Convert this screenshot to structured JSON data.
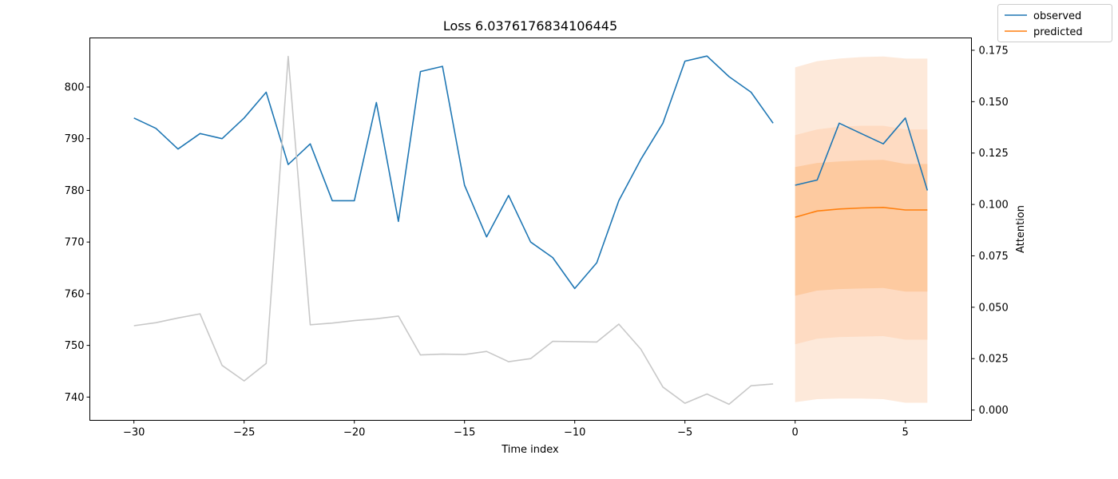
{
  "chart_data": {
    "type": "line",
    "title": "Loss 6.0376176834106445",
    "xlabel": "Time index",
    "ylabel_left": "",
    "ylabel_right": "Attention",
    "xlim": [
      -32,
      8
    ],
    "ylim_left": [
      735.5,
      809.5
    ],
    "ylim_right": [
      -0.005,
      0.181
    ],
    "x_ticks": [
      -30,
      -25,
      -20,
      -15,
      -10,
      -5,
      0,
      5
    ],
    "x_tick_labels": [
      "−30",
      "−25",
      "−20",
      "−15",
      "−10",
      "−5",
      "0",
      "5"
    ],
    "y_left_ticks": [
      740,
      750,
      760,
      770,
      780,
      790,
      800
    ],
    "y_left_tick_labels": [
      "740",
      "750",
      "760",
      "770",
      "780",
      "790",
      "800"
    ],
    "y_right_ticks": [
      0.0,
      0.025,
      0.05,
      0.075,
      0.1,
      0.125,
      0.15,
      0.175
    ],
    "y_right_tick_labels": [
      "0.000",
      "0.025",
      "0.050",
      "0.075",
      "0.100",
      "0.125",
      "0.150",
      "0.175"
    ],
    "legend": {
      "position": "top-right",
      "entries": [
        "observed",
        "predicted"
      ]
    },
    "grid": false,
    "series": [
      {
        "name": "observed",
        "axis": "left",
        "color": "#1f77b4",
        "x": [
          -30,
          -29,
          -28,
          -27,
          -26,
          -25,
          -24,
          -23,
          -22,
          -21,
          -20,
          -19,
          -18,
          -17,
          -16,
          -15,
          -14,
          -13,
          -12,
          -11,
          -10,
          -9,
          -8,
          -7,
          -6,
          -5,
          -4,
          -3,
          -2,
          -1
        ],
        "y": [
          794,
          792,
          788,
          791,
          790,
          794,
          799,
          785,
          789,
          778,
          778,
          797,
          774,
          803,
          804,
          781,
          771,
          779,
          770,
          767,
          761,
          766,
          778,
          786,
          793,
          805,
          806,
          802,
          799,
          793
        ]
      },
      {
        "name": "observed",
        "axis": "left",
        "color": "#1f77b4",
        "x": [
          0,
          1,
          2,
          3,
          4,
          5,
          6
        ],
        "y": [
          781,
          782,
          793,
          791,
          789,
          794,
          780
        ]
      },
      {
        "name": "predicted",
        "axis": "left",
        "color": "#ff7f0e",
        "x": [
          0,
          1,
          2,
          3,
          4,
          5,
          6
        ],
        "y": [
          774.8,
          776,
          776.4,
          776.6,
          776.7,
          776.2,
          776.2
        ]
      },
      {
        "name": "attention",
        "axis": "right",
        "color": "#c8c8c8",
        "x": [
          -30,
          -29,
          -28,
          -27,
          -26,
          -25,
          -24,
          -23,
          -22,
          -21,
          -20,
          -19,
          -18,
          -17,
          -16,
          -15,
          -14,
          -13,
          -12,
          -11,
          -10,
          -9,
          -8,
          -7,
          -6,
          -5,
          -4,
          -3,
          -2,
          -1
        ],
        "y": [
          0.041,
          0.0425,
          0.0448,
          0.0468,
          0.0217,
          0.0142,
          0.0227,
          0.172,
          0.0415,
          0.0423,
          0.0435,
          0.0444,
          0.0457,
          0.0268,
          0.0272,
          0.027,
          0.0285,
          0.0235,
          0.025,
          0.0334,
          0.0333,
          0.0331,
          0.0418,
          0.0296,
          0.0112,
          0.0033,
          0.0078,
          0.0028,
          0.0118,
          0.0127
        ]
      }
    ],
    "bands": [
      {
        "color": "#fde9da",
        "x": [
          0,
          1,
          2,
          3,
          4,
          5,
          6
        ],
        "lower": [
          739,
          739.6,
          739.7,
          739.7,
          739.6,
          738.9,
          738.9
        ],
        "upper": [
          803.8,
          805,
          805.5,
          805.8,
          805.9,
          805.5,
          805.5
        ]
      },
      {
        "color": "#fedbc2",
        "x": [
          0,
          1,
          2,
          3,
          4,
          5,
          6
        ],
        "lower": [
          750.2,
          751.3,
          751.6,
          751.7,
          751.8,
          751.1,
          751.1
        ],
        "upper": [
          790.7,
          791.8,
          792.3,
          792.5,
          792.5,
          791.8,
          791.8
        ]
      },
      {
        "color": "#fdcaa0",
        "x": [
          0,
          1,
          2,
          3,
          4,
          5,
          6
        ],
        "lower": [
          759.6,
          760.6,
          760.9,
          761.0,
          761.1,
          760.4,
          760.4
        ],
        "upper": [
          784.5,
          785.3,
          785.6,
          785.8,
          785.9,
          785.1,
          785.1
        ]
      }
    ]
  }
}
